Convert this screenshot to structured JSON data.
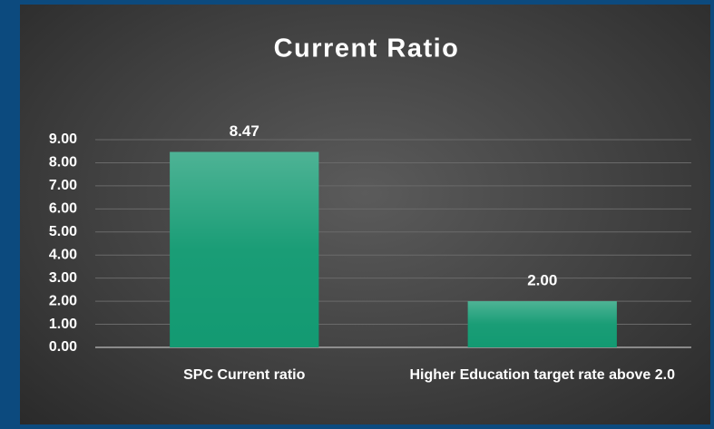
{
  "chart_data": {
    "type": "bar",
    "title": "Current Ratio",
    "categories": [
      "SPC Current ratio",
      "Higher Education target rate above 2.0"
    ],
    "values": [
      8.47,
      2.0
    ],
    "value_labels": [
      "8.47",
      "2.00"
    ],
    "color": "#139a72",
    "ylim": [
      0,
      9
    ],
    "yticks": [
      {
        "value": 0,
        "label": "0.00"
      },
      {
        "value": 1,
        "label": "1.00"
      },
      {
        "value": 2,
        "label": "2.00"
      },
      {
        "value": 3,
        "label": "3.00"
      },
      {
        "value": 4,
        "label": "4.00"
      },
      {
        "value": 5,
        "label": "5.00"
      },
      {
        "value": 6,
        "label": "6.00"
      },
      {
        "value": 7,
        "label": "7.00"
      },
      {
        "value": 8,
        "label": "8.00"
      },
      {
        "value": 9,
        "label": "9.00"
      }
    ],
    "grid": true
  }
}
